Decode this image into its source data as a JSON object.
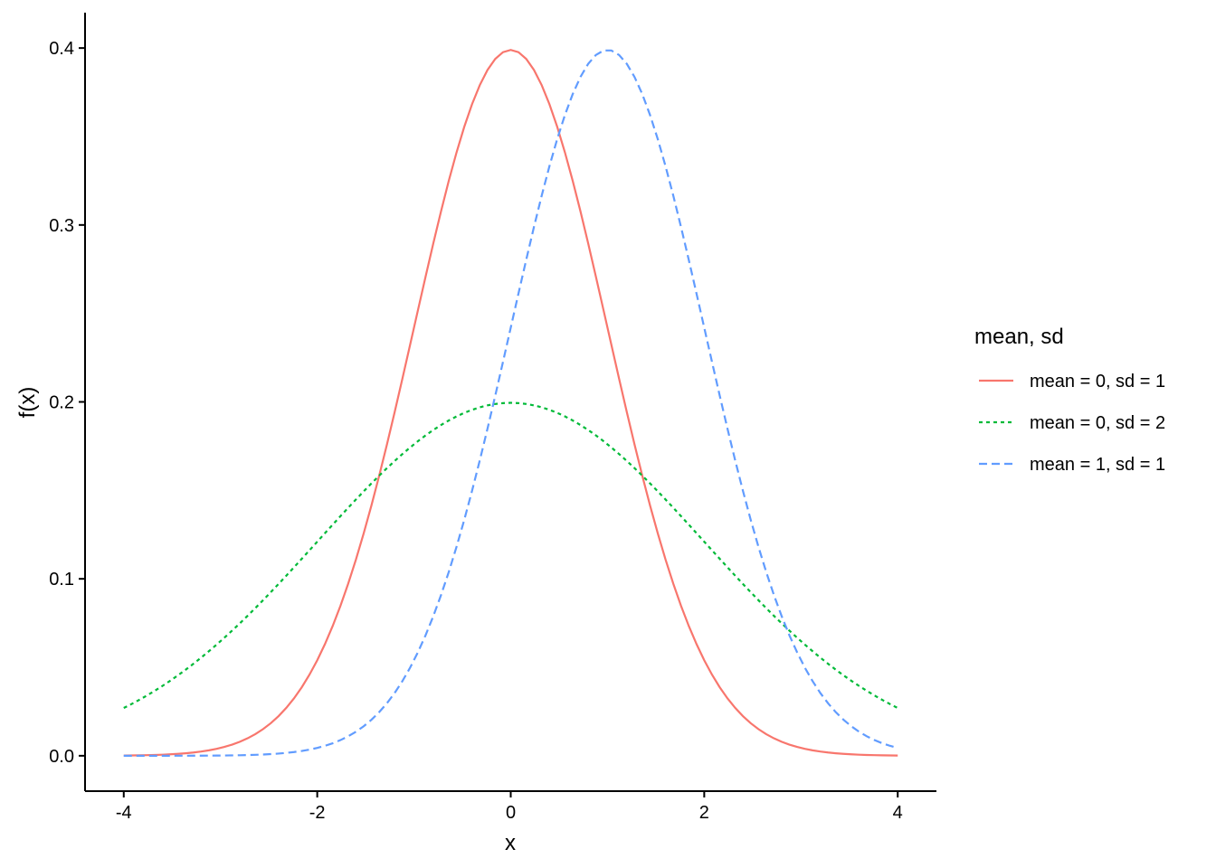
{
  "chart_data": {
    "type": "line",
    "title": "",
    "xlabel": "x",
    "ylabel": "f(x)",
    "xlim": [
      -4.4,
      4.4
    ],
    "ylim": [
      -0.02,
      0.42
    ],
    "x_ticks": [
      -4,
      -2,
      0,
      2,
      4
    ],
    "x_tick_labels": [
      "-4",
      "-2",
      "0",
      "2",
      "4"
    ],
    "y_ticks": [
      0.0,
      0.1,
      0.2,
      0.3,
      0.4
    ],
    "y_tick_labels": [
      "0.0",
      "0.1",
      "0.2",
      "0.3",
      "0.4"
    ],
    "grid": false,
    "legend": {
      "title": "mean, sd",
      "placement": "right"
    },
    "x_range": [
      -4,
      4
    ],
    "n_points": 101,
    "series": [
      {
        "name": "mean = 0, sd = 1",
        "mean": 0,
        "sd": 1,
        "color": "#F8766D",
        "dash": "solid"
      },
      {
        "name": "mean = 0, sd = 2",
        "mean": 0,
        "sd": 2,
        "color": "#00BA38",
        "dash": "dotted"
      },
      {
        "name": "mean = 1, sd = 1",
        "mean": 1,
        "sd": 1,
        "color": "#619CFF",
        "dash": "dashed"
      }
    ]
  }
}
